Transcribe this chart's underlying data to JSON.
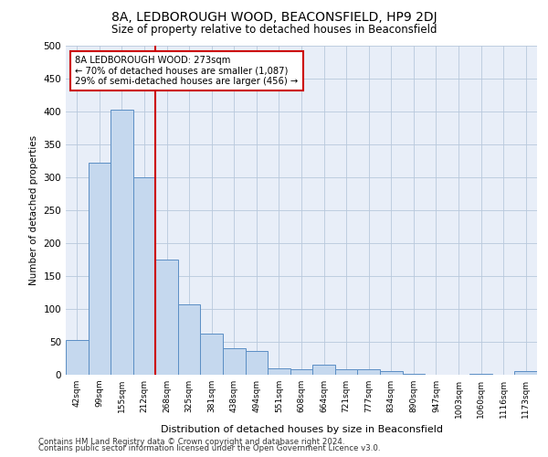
{
  "title": "8A, LEDBOROUGH WOOD, BEACONSFIELD, HP9 2DJ",
  "subtitle": "Size of property relative to detached houses in Beaconsfield",
  "xlabel": "Distribution of detached houses by size in Beaconsfield",
  "ylabel": "Number of detached properties",
  "categories": [
    "42sqm",
    "99sqm",
    "155sqm",
    "212sqm",
    "268sqm",
    "325sqm",
    "381sqm",
    "438sqm",
    "494sqm",
    "551sqm",
    "608sqm",
    "664sqm",
    "721sqm",
    "777sqm",
    "834sqm",
    "890sqm",
    "947sqm",
    "1003sqm",
    "1060sqm",
    "1116sqm",
    "1173sqm"
  ],
  "values": [
    53,
    322,
    403,
    300,
    175,
    107,
    62,
    40,
    36,
    10,
    9,
    15,
    9,
    8,
    5,
    2,
    0,
    0,
    1,
    0,
    5
  ],
  "bar_color": "#c5d8ee",
  "bar_edge_color": "#5b8ec4",
  "vline_color": "#cc0000",
  "annotation_line1": "8A LEDBOROUGH WOOD: 273sqm",
  "annotation_line2": "← 70% of detached houses are smaller (1,087)",
  "annotation_line3": "29% of semi-detached houses are larger (456) →",
  "annotation_box_facecolor": "#ffffff",
  "annotation_box_edgecolor": "#cc0000",
  "ylim": [
    0,
    500
  ],
  "yticks": [
    0,
    50,
    100,
    150,
    200,
    250,
    300,
    350,
    400,
    450,
    500
  ],
  "footer1": "Contains HM Land Registry data © Crown copyright and database right 2024.",
  "footer2": "Contains public sector information licensed under the Open Government Licence v3.0.",
  "plot_bg_color": "#e8eef8",
  "fig_bg_color": "#ffffff",
  "vline_bin_index": 4
}
